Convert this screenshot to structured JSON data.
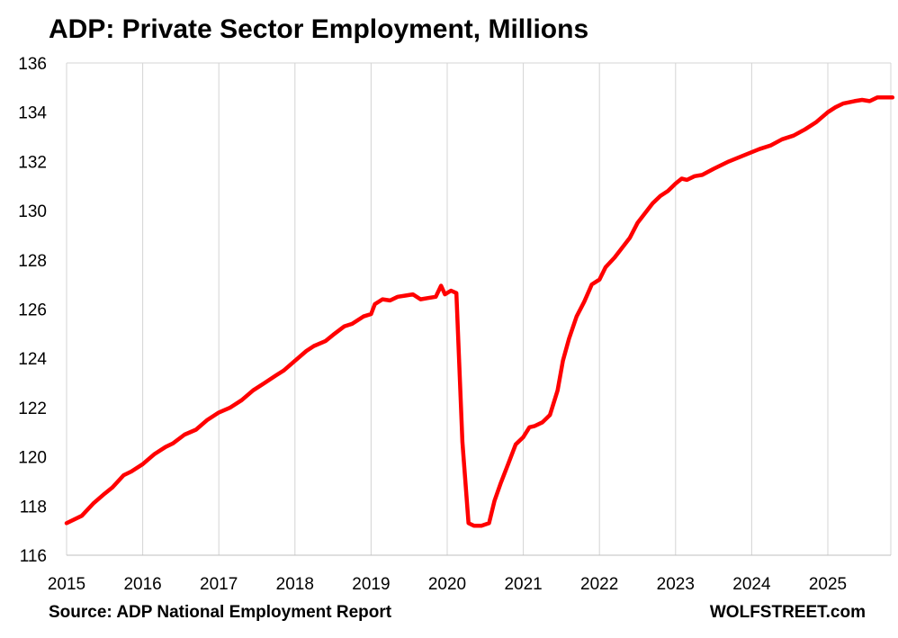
{
  "chart_data": {
    "type": "line",
    "title": "ADP: Private Sector Employment, Millions",
    "source": "Source: ADP National Employment Report",
    "brand": "WOLFSTREET.com",
    "xlabel": "",
    "ylabel": "",
    "xlim": [
      2015,
      2025.9
    ],
    "ylim": [
      116,
      136
    ],
    "y_ticks": [
      116,
      118,
      120,
      122,
      124,
      126,
      128,
      130,
      132,
      134,
      136
    ],
    "x_ticks": [
      2015,
      2016,
      2017,
      2018,
      2019,
      2020,
      2021,
      2022,
      2023,
      2024,
      2025
    ],
    "grid": "vertical",
    "line_color": "#ff0000",
    "series": [
      {
        "x": [
          2015.0,
          2015.2,
          2015.35,
          2015.5,
          2015.6,
          2015.75,
          2015.85,
          2016.0,
          2016.15,
          2016.3,
          2016.4,
          2016.55,
          2016.7,
          2016.85,
          2017.0,
          2017.15,
          2017.3,
          2017.45,
          2017.6,
          2017.75,
          2017.85,
          2018.0,
          2018.15,
          2018.25,
          2018.4,
          2018.5,
          2018.65,
          2018.75,
          2018.9,
          2019.0,
          2019.05,
          2019.15,
          2019.25,
          2019.35,
          2019.45,
          2019.55,
          2019.65,
          2019.75,
          2019.85,
          2019.92,
          2019.97,
          2020.05,
          2020.12,
          2020.2,
          2020.28,
          2020.35,
          2020.45,
          2020.55,
          2020.62,
          2020.7,
          2020.8,
          2020.9,
          2021.0,
          2021.08,
          2021.15,
          2021.25,
          2021.35,
          2021.45,
          2021.52,
          2021.6,
          2021.7,
          2021.8,
          2021.9,
          2022.0,
          2022.08,
          2022.2,
          2022.3,
          2022.4,
          2022.5,
          2022.6,
          2022.7,
          2022.8,
          2022.9,
          2023.0,
          2023.08,
          2023.15,
          2023.25,
          2023.35,
          2023.5,
          2023.7,
          2023.9,
          2024.1,
          2024.25,
          2024.4,
          2024.55,
          2024.7,
          2024.85,
          2025.0,
          2025.1,
          2025.2,
          2025.35,
          2025.45,
          2025.55,
          2025.65,
          2025.75,
          2025.85
        ],
        "values": [
          117.3,
          117.6,
          118.1,
          118.5,
          118.75,
          119.25,
          119.4,
          119.7,
          120.1,
          120.4,
          120.55,
          120.9,
          121.1,
          121.5,
          121.8,
          122.0,
          122.3,
          122.7,
          123.0,
          123.3,
          123.5,
          123.9,
          124.3,
          124.5,
          124.7,
          124.95,
          125.3,
          125.4,
          125.7,
          125.8,
          126.2,
          126.4,
          126.35,
          126.5,
          126.55,
          126.6,
          126.4,
          126.45,
          126.5,
          126.95,
          126.6,
          126.75,
          126.65,
          120.6,
          117.3,
          117.2,
          117.2,
          117.3,
          118.2,
          118.9,
          119.7,
          120.5,
          120.8,
          121.2,
          121.25,
          121.4,
          121.7,
          122.7,
          123.9,
          124.8,
          125.7,
          126.3,
          127.0,
          127.2,
          127.7,
          128.1,
          128.5,
          128.9,
          129.5,
          129.9,
          130.3,
          130.6,
          130.8,
          131.1,
          131.3,
          131.25,
          131.4,
          131.45,
          131.7,
          132.0,
          132.25,
          132.5,
          132.65,
          132.9,
          133.05,
          133.3,
          133.6,
          134.0,
          134.2,
          134.35,
          134.45,
          134.5,
          134.45,
          134.6,
          134.6,
          134.6
        ]
      }
    ]
  }
}
